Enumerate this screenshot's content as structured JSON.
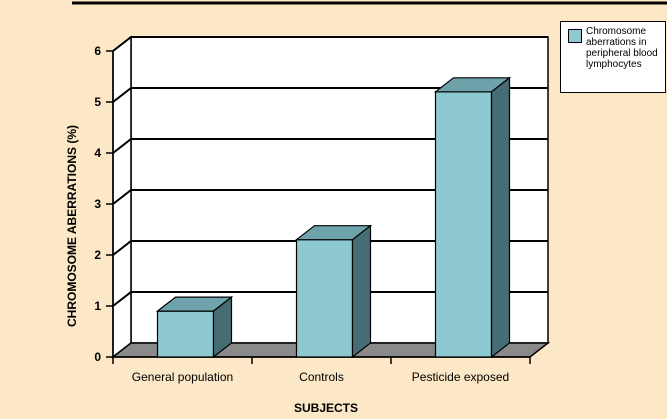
{
  "chart_data": {
    "type": "bar",
    "categories": [
      "General population",
      "Controls",
      "Pesticide exposed"
    ],
    "series": [
      {
        "name": "Chromosome aberrations in peripheral blood lymphocytes",
        "values": [
          0.9,
          2.3,
          5.2
        ]
      }
    ],
    "title": "",
    "xlabel": "SUBJECTS",
    "ylabel": "CHROMOSOME ABERRATIONS (%)",
    "ylim": [
      0,
      6
    ],
    "yticks": [
      "0",
      "1",
      "2",
      "3",
      "4",
      "5",
      "6"
    ],
    "grid": true,
    "legend_position": "top-right",
    "three_d": true
  },
  "colors": {
    "background": "#fce7c6",
    "plot_area": "#ffffff",
    "floor": "#8a8a8a",
    "bar_front": "#8ec9d2",
    "bar_top": "#6fa3ac",
    "bar_side": "#456d73",
    "grid": "#000000"
  }
}
